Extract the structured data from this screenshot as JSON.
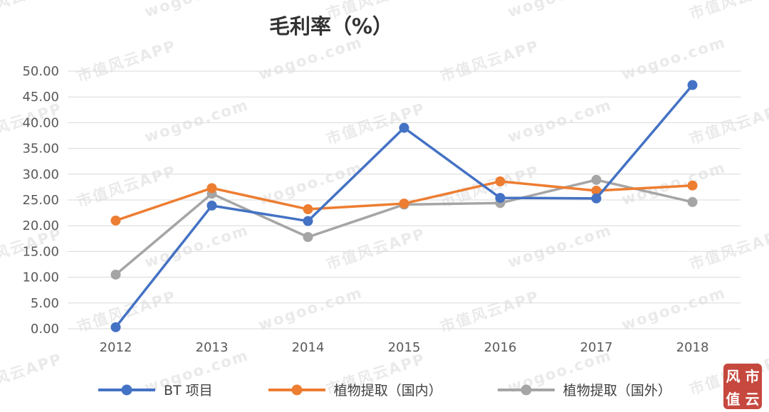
{
  "title": "毛利率（%）",
  "chart_data": {
    "type": "line",
    "title": "毛利率（%）",
    "categories": [
      "2012",
      "2013",
      "2014",
      "2015",
      "2016",
      "2017",
      "2018"
    ],
    "series": [
      {
        "name": "BT 项目",
        "color": "#4472C4",
        "values": [
          0.3,
          23.9,
          20.9,
          39.0,
          25.4,
          25.3,
          47.3
        ]
      },
      {
        "name": "植物提取（国内）",
        "color": "#ED7D31",
        "values": [
          21.0,
          27.3,
          23.2,
          24.3,
          28.6,
          26.8,
          27.8
        ]
      },
      {
        "name": "植物提取（国外）",
        "color": "#A5A5A5",
        "values": [
          10.5,
          26.2,
          17.8,
          24.1,
          24.4,
          28.9,
          24.6
        ]
      }
    ],
    "ylim": [
      0,
      50
    ],
    "ytick_step": 5,
    "ytick_format_decimals": 2,
    "grid": "horizontal",
    "legend_position": "bottom",
    "axis_text_color": "#595959",
    "grid_color": "#d9d9d9"
  },
  "watermark": {
    "texts": [
      "市值风云APP",
      "wogoo.com"
    ],
    "color": "#d9d9d9"
  },
  "seal": {
    "chars": [
      "风",
      "市",
      "值",
      "云"
    ]
  }
}
